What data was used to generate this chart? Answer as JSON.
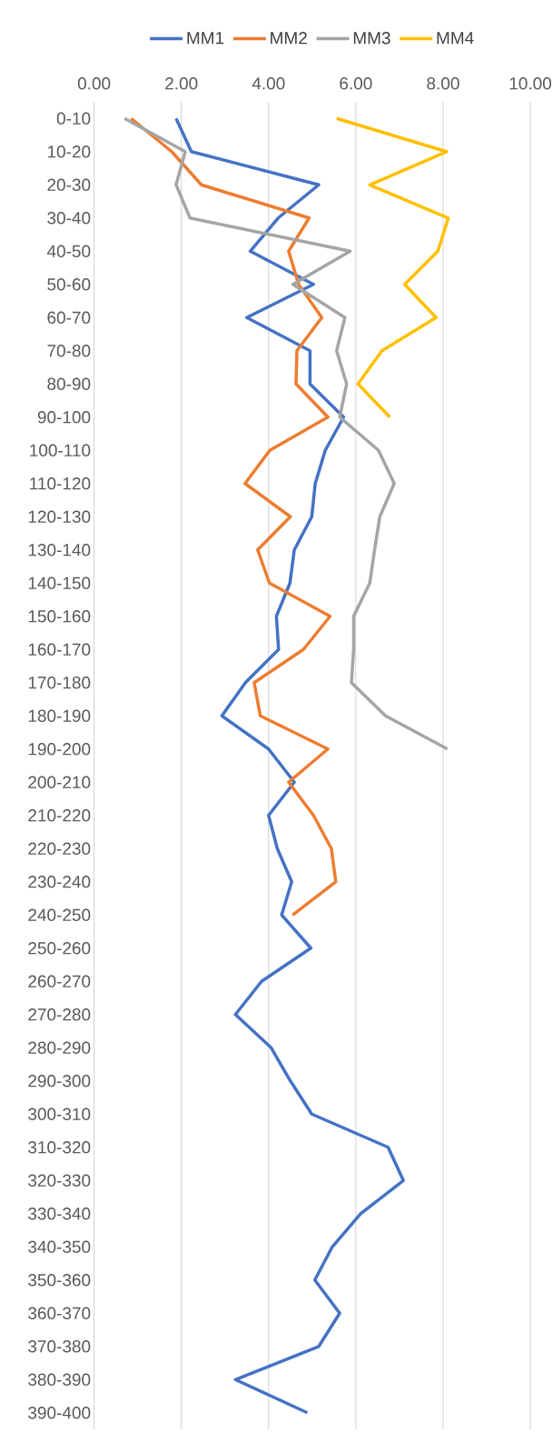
{
  "chart_data": {
    "type": "line",
    "orientation": "horizontal",
    "legend": "top",
    "grid": "x",
    "marker": "none",
    "line_style": "solid",
    "categories": [
      "0-10",
      "10-20",
      "20-30",
      "30-40",
      "40-50",
      "50-60",
      "60-70",
      "70-80",
      "80-90",
      "90-100",
      "100-110",
      "110-120",
      "120-130",
      "130-140",
      "140-150",
      "150-160",
      "160-170",
      "170-180",
      "180-190",
      "190-200",
      "200-210",
      "210-220",
      "220-230",
      "230-240",
      "240-250",
      "250-260",
      "260-270",
      "270-280",
      "280-290",
      "290-300",
      "300-310",
      "310-320",
      "320-330",
      "330-340",
      "340-350",
      "350-360",
      "360-370",
      "370-380",
      "380-390",
      "390-400"
    ],
    "xlim": [
      0,
      10
    ],
    "xticks": [
      {
        "value": 0,
        "label": "0.00"
      },
      {
        "value": 2,
        "label": "2.00"
      },
      {
        "value": 4,
        "label": "4.00"
      },
      {
        "value": 6,
        "label": "6.00"
      },
      {
        "value": 8,
        "label": "8.00"
      },
      {
        "value": 10,
        "label": "10.00"
      }
    ],
    "series": [
      {
        "name": "MM1",
        "color": "#4472c4",
        "values": [
          1.88,
          2.23,
          5.15,
          4.22,
          3.58,
          5.03,
          3.5,
          4.95,
          4.95,
          5.72,
          5.3,
          5.07,
          4.99,
          4.59,
          4.49,
          4.18,
          4.23,
          3.47,
          2.93,
          4.0,
          4.59,
          4.0,
          4.2,
          4.53,
          4.3,
          4.97,
          3.84,
          3.24,
          4.06,
          4.5,
          4.99,
          6.74,
          7.09,
          6.11,
          5.46,
          5.06,
          5.63,
          5.15,
          3.24,
          4.89
        ]
      },
      {
        "name": "MM2",
        "color": "#ed7d31",
        "values": [
          0.85,
          1.78,
          2.46,
          4.93,
          4.46,
          4.69,
          5.22,
          4.65,
          4.63,
          5.36,
          4.03,
          3.46,
          4.5,
          3.75,
          4.02,
          5.41,
          4.8,
          3.67,
          3.81,
          5.36,
          4.46,
          5.03,
          5.44,
          5.54,
          4.55,
          null,
          null,
          null,
          null,
          null,
          null,
          null,
          null,
          null,
          null,
          null,
          null,
          null,
          null,
          null
        ]
      },
      {
        "name": "MM3",
        "color": "#a5a5a5",
        "values": [
          0.7,
          2.09,
          1.88,
          2.2,
          5.87,
          4.56,
          5.75,
          5.56,
          5.79,
          5.63,
          6.52,
          6.88,
          6.55,
          6.43,
          6.32,
          5.95,
          5.95,
          5.9,
          6.68,
          8.1,
          null,
          null,
          null,
          null,
          null,
          null,
          null,
          null,
          null,
          null,
          null,
          null,
          null,
          null,
          null,
          null,
          null,
          null,
          null,
          null
        ]
      },
      {
        "name": "MM4",
        "color": "#ffc000",
        "values": [
          5.56,
          8.08,
          6.32,
          8.12,
          7.88,
          7.12,
          7.84,
          6.6,
          6.05,
          6.78,
          null,
          null,
          null,
          null,
          null,
          null,
          null,
          null,
          null,
          null,
          null,
          null,
          null,
          null,
          null,
          null,
          null,
          null,
          null,
          null,
          null,
          null,
          null,
          null,
          null,
          null,
          null,
          null,
          null,
          null
        ]
      }
    ]
  }
}
